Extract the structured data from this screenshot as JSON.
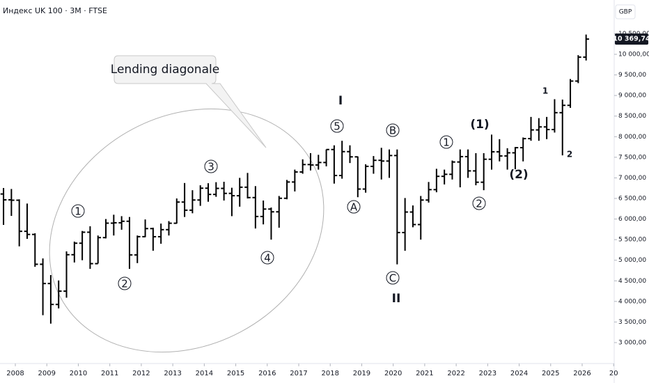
{
  "chart_data": {
    "type": "ohlc",
    "title": "Индекс UK 100 · 3M · FTSE",
    "currency": "GBP",
    "callout": "Lending diagonale",
    "color": "#000000",
    "x": [
      2007.625,
      2007.875,
      2008.125,
      2008.375,
      2008.625,
      2008.875,
      2009.125,
      2009.375,
      2009.625,
      2009.875,
      2010.125,
      2010.375,
      2010.625,
      2010.875,
      2011.125,
      2011.375,
      2011.625,
      2011.875,
      2012.125,
      2012.375,
      2012.625,
      2012.875,
      2013.125,
      2013.375,
      2013.625,
      2013.875,
      2014.125,
      2014.375,
      2014.625,
      2014.875,
      2015.125,
      2015.375,
      2015.625,
      2015.875,
      2016.125,
      2016.375,
      2016.625,
      2016.875,
      2017.125,
      2017.375,
      2017.625,
      2017.875,
      2018.125,
      2018.375,
      2018.625,
      2018.875,
      2019.125,
      2019.375,
      2019.625,
      2019.875,
      2020.125,
      2020.375,
      2020.625,
      2020.875,
      2021.125,
      2021.375,
      2021.625,
      2021.875,
      2022.125,
      2022.375,
      2022.625,
      2022.875,
      2023.125,
      2023.375,
      2023.625,
      2023.875,
      2024.125,
      2024.375,
      2024.625,
      2024.875,
      2025.125,
      2025.375,
      2025.625,
      2025.875,
      2026.125
    ],
    "open": [
      6608,
      6466,
      6457,
      5702,
      5626,
      4902,
      4434,
      3926,
      4249,
      5134,
      5413,
      5680,
      4917,
      5549,
      5900,
      5909,
      5946,
      5128,
      5572,
      5768,
      5571,
      5742,
      5898,
      6412,
      6215,
      6462,
      6749,
      6598,
      6744,
      6623,
      6566,
      6773,
      6521,
      6062,
      6242,
      6175,
      6504,
      6899,
      7143,
      7323,
      7313,
      7373,
      7688,
      7057,
      7637,
      7510,
      6728,
      7279,
      7426,
      7408,
      7542,
      5672,
      6170,
      5866,
      6461,
      6714,
      7037,
      7086,
      7385,
      7516,
      7169,
      6894,
      7452,
      7632,
      7532,
      7608,
      7733,
      7953,
      8164,
      8237,
      8173,
      8583,
      8761,
      9350,
      9931
    ],
    "high": [
      6754,
      6730,
      6479,
      6376,
      5654,
      5044,
      4639,
      4509,
      5214,
      5452,
      5710,
      5825,
      5600,
      6000,
      6105,
      6070,
      6050,
      5600,
      5990,
      5790,
      5890,
      5950,
      6500,
      6875,
      6700,
      6820,
      6870,
      6895,
      6905,
      6760,
      7000,
      7120,
      6800,
      6450,
      6280,
      6560,
      6950,
      7200,
      7450,
      7600,
      7560,
      7690,
      7790,
      7900,
      7790,
      7520,
      7330,
      7530,
      7730,
      7690,
      7690,
      6510,
      6330,
      6560,
      6900,
      7220,
      7200,
      7420,
      7690,
      7690,
      7600,
      7600,
      8050,
      7940,
      7720,
      7750,
      7980,
      8480,
      8450,
      8480,
      8910,
      8900,
      9400,
      9980,
      10480
    ],
    "low": [
      5858,
      6076,
      5338,
      5519,
      4840,
      3665,
      3460,
      3830,
      4090,
      4945,
      5000,
      4790,
      4920,
      5530,
      5600,
      5740,
      4790,
      4930,
      5560,
      5230,
      5400,
      5600,
      5890,
      6050,
      6140,
      6320,
      6420,
      6540,
      6450,
      6070,
      6300,
      6500,
      5770,
      5870,
      5500,
      5790,
      6480,
      6670,
      7100,
      7180,
      7200,
      7280,
      6860,
      6980,
      7360,
      6530,
      6640,
      7100,
      6960,
      7000,
      4899,
      5230,
      5800,
      5500,
      6400,
      6650,
      6840,
      6960,
      6770,
      7000,
      6820,
      6700,
      7200,
      7400,
      7200,
      7210,
      7400,
      7900,
      7900,
      7940,
      8100,
      7545,
      8700,
      9300,
      9850
    ],
    "close": [
      6466,
      6457,
      5702,
      5626,
      4902,
      4434,
      3926,
      4249,
      5134,
      5413,
      5680,
      4917,
      5549,
      5900,
      5909,
      5946,
      5128,
      5572,
      5768,
      5571,
      5742,
      5898,
      6412,
      6215,
      6462,
      6749,
      6598,
      6744,
      6623,
      6566,
      6773,
      6521,
      6062,
      6242,
      6175,
      6504,
      6899,
      7143,
      7323,
      7313,
      7373,
      7688,
      7057,
      7637,
      7510,
      6728,
      7279,
      7426,
      7408,
      7542,
      5672,
      6170,
      5866,
      6461,
      6714,
      7037,
      7086,
      7385,
      7516,
      7169,
      6894,
      7452,
      7632,
      7532,
      7608,
      7733,
      7953,
      8164,
      8237,
      8173,
      8583,
      8761,
      9350,
      9931,
      10369.74
    ],
    "last_price": {
      "value": 10369.74,
      "label": "10 369,74"
    },
    "xlim": [
      2007.513,
      2027.017
    ],
    "xticks": [
      2008,
      2009,
      2010,
      2011,
      2012,
      2013,
      2014,
      2015,
      2016,
      2017,
      2018,
      2019,
      2020,
      2021,
      2022,
      2023,
      2024,
      2025,
      2026,
      {
        "value": 2027,
        "label": "20"
      }
    ],
    "ylim": [
      2492,
      11319
    ],
    "yticks": [
      {
        "value": 3000,
        "label": "3 000,00"
      },
      {
        "value": 3500,
        "label": "3 500,00"
      },
      {
        "value": 4000,
        "label": "4 000,00"
      },
      {
        "value": 4500,
        "label": "4 500,00"
      },
      {
        "value": 5000,
        "label": "5 000,00"
      },
      {
        "value": 5500,
        "label": "5 500,00"
      },
      {
        "value": 6000,
        "label": "6 000,00"
      },
      {
        "value": 6500,
        "label": "6 500,00"
      },
      {
        "value": 7000,
        "label": "7 000,00"
      },
      {
        "value": 7500,
        "label": "7 500,00"
      },
      {
        "value": 8000,
        "label": "8 000,00"
      },
      {
        "value": 8500,
        "label": "8 500,00"
      },
      {
        "value": 9000,
        "label": "9 000,00"
      },
      {
        "value": 9500,
        "label": "9 500,00"
      },
      {
        "value": 10000,
        "label": "10 000,00"
      },
      {
        "value": 10500,
        "label": "10 500,00"
      }
    ],
    "annotations": [
      "1",
      "2",
      "3",
      "4",
      "5",
      "A",
      "B",
      "C",
      "1",
      "2",
      "I",
      "II",
      "(1)",
      "(2)",
      "1",
      "2"
    ]
  }
}
